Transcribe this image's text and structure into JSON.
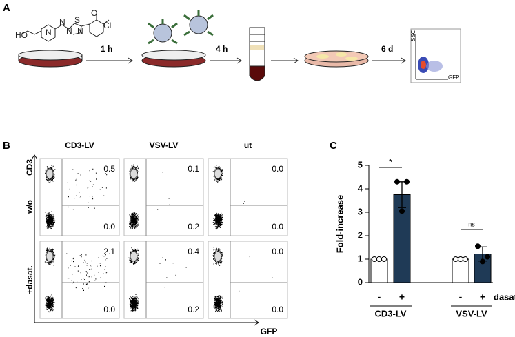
{
  "panel_a": {
    "letter": "A",
    "atoms": [
      "HO",
      "N",
      "N",
      "N",
      "N",
      "S",
      "O",
      "Cl"
    ],
    "steps": [
      "1 h",
      "4 h",
      "6 d"
    ],
    "facs_y": "SSC",
    "facs_x": "GFP"
  },
  "panel_b": {
    "letter": "B",
    "columns": [
      "CD3-LV",
      "VSV-LV",
      "ut"
    ],
    "rows": [
      "w/o",
      "+dasat."
    ],
    "y_axis": "CD3",
    "x_axis": "GFP",
    "quadrants": [
      [
        [
          "0.5",
          "0.0"
        ],
        [
          "0.1",
          "0.2"
        ],
        [
          "0.0",
          "0.0"
        ]
      ],
      [
        [
          "2.1",
          "0.0"
        ],
        [
          "0.4",
          "0.2"
        ],
        [
          "0.0",
          "0.0"
        ]
      ]
    ]
  },
  "chart_data": {
    "type": "bar",
    "letter": "C",
    "ylabel": "Fold-increase",
    "ylim": [
      0,
      5
    ],
    "yticks": [
      0,
      1,
      2,
      3,
      4,
      5
    ],
    "categories": [
      "-",
      "+",
      "-",
      "+"
    ],
    "groups": [
      "CD3-LV",
      "VSV-LV"
    ],
    "treatment": "dasat.",
    "values": [
      1,
      3.75,
      1,
      1.22
    ],
    "errors": [
      null,
      0.55,
      null,
      0.3
    ],
    "colors": [
      "#ffffff",
      "#1f3a56",
      "#ffffff",
      "#1f3a56"
    ],
    "points": [
      [
        1,
        1,
        1
      ],
      [
        4.3,
        4.3,
        3.05
      ],
      [
        1,
        1,
        1
      ],
      [
        1.55,
        1.1,
        0.9
      ]
    ],
    "significance": [
      "*",
      "ns"
    ]
  }
}
